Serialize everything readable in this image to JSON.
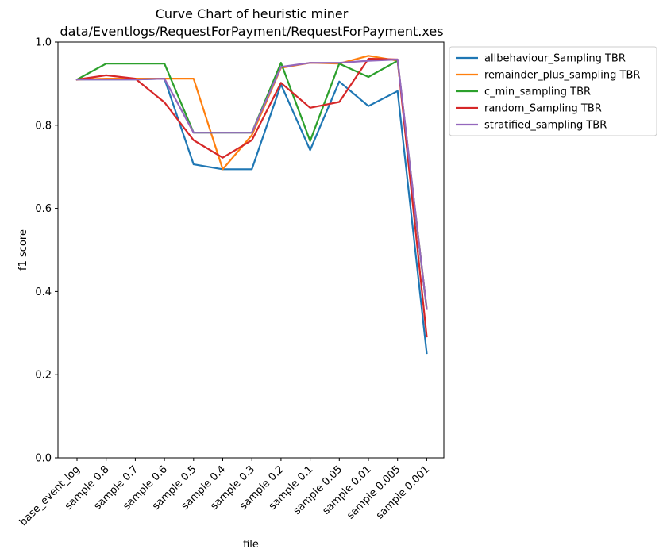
{
  "chart_data": {
    "type": "line",
    "title": [
      "Curve Chart of heuristic miner",
      "data/Eventlogs/RequestForPayment/RequestForPayment.xes"
    ],
    "xlabel": "file",
    "ylabel": "f1 score",
    "ylim": [
      0,
      1
    ],
    "yticks": [
      "0.0",
      "0.2",
      "0.4",
      "0.6",
      "0.8",
      "1.0"
    ],
    "grid": false,
    "legend_position": "outside upper right",
    "categories": [
      "base_event_log",
      "sample 0.8",
      "sample 0.7",
      "sample 0.6",
      "sample 0.5",
      "sample 0.4",
      "sample 0.3",
      "sample 0.2",
      "sample 0.1",
      "sample 0.05",
      "sample 0.01",
      "sample 0.005",
      "sample 0.001"
    ],
    "series": [
      {
        "name": "allbehaviour_Sampling TBR",
        "color": "#1f77b4",
        "values": [
          0.91,
          0.91,
          0.91,
          0.912,
          0.706,
          0.694,
          0.694,
          0.898,
          0.74,
          0.905,
          0.846,
          0.882,
          0.252
        ]
      },
      {
        "name": "remainder_plus_sampling TBR",
        "color": "#ff7f0e",
        "values": [
          0.91,
          0.912,
          0.912,
          0.912,
          0.912,
          0.694,
          0.776,
          0.938,
          0.95,
          0.948,
          0.967,
          0.955,
          0.358
        ]
      },
      {
        "name": "c_min_sampling TBR",
        "color": "#2ca02c",
        "values": [
          0.91,
          0.948,
          0.948,
          0.948,
          0.782,
          0.782,
          0.782,
          0.95,
          0.762,
          0.948,
          0.916,
          0.955,
          0.358
        ]
      },
      {
        "name": "random_Sampling TBR",
        "color": "#d62728",
        "values": [
          0.91,
          0.92,
          0.912,
          0.855,
          0.764,
          0.722,
          0.764,
          0.902,
          0.842,
          0.856,
          0.96,
          0.958,
          0.292
        ]
      },
      {
        "name": "stratified_sampling TBR",
        "color": "#9467bd",
        "values": [
          0.91,
          0.91,
          0.91,
          0.912,
          0.782,
          0.782,
          0.782,
          0.94,
          0.95,
          0.95,
          0.955,
          0.958,
          0.358
        ]
      }
    ]
  }
}
